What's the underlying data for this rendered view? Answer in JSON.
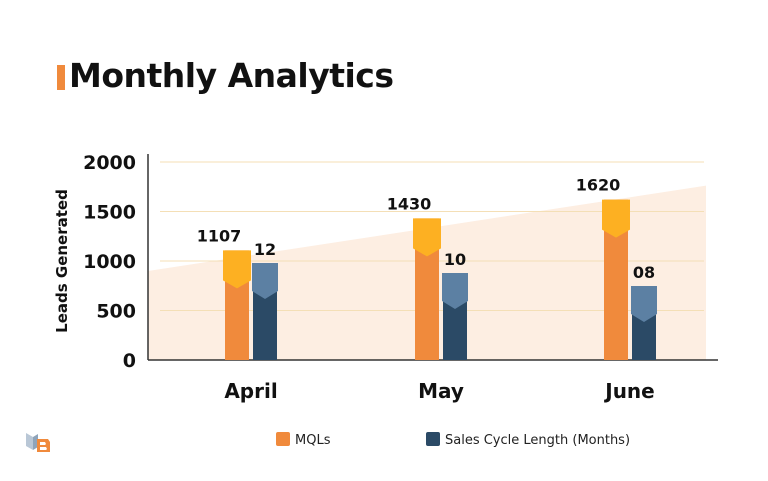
{
  "title": "Monthly Analytics",
  "colors": {
    "accent": "#f08a3c",
    "mql": "#f08a3c",
    "mql_cap": "#fdb022",
    "cycle": "#2b4a66",
    "cycle_cap": "#5c80a3",
    "area": "#fdeee2",
    "grid": "#f4dfb6"
  },
  "chart_data": {
    "type": "bar",
    "title": "Monthly Analytics",
    "xlabel": "",
    "ylabel": "Leads Generated",
    "ylim": [
      0,
      2000
    ],
    "yticks": [
      0,
      500,
      1000,
      1500,
      2000
    ],
    "ytick_labels": [
      "0",
      "500",
      "1000",
      "1500",
      "2000"
    ],
    "grid": true,
    "legend_position": "bottom",
    "categories": [
      "April",
      "May",
      "June"
    ],
    "series": [
      {
        "name": "MQLs",
        "values": [
          1107,
          1430,
          1620
        ],
        "labels": [
          "1107",
          "1430",
          "1620"
        ]
      },
      {
        "name": "Sales Cycle Length (Months)",
        "values": [
          12,
          10,
          8
        ],
        "labels": [
          "12",
          "10",
          "08"
        ]
      }
    ]
  },
  "logo": {
    "name": "brand-logo-icon",
    "text": "UB"
  }
}
